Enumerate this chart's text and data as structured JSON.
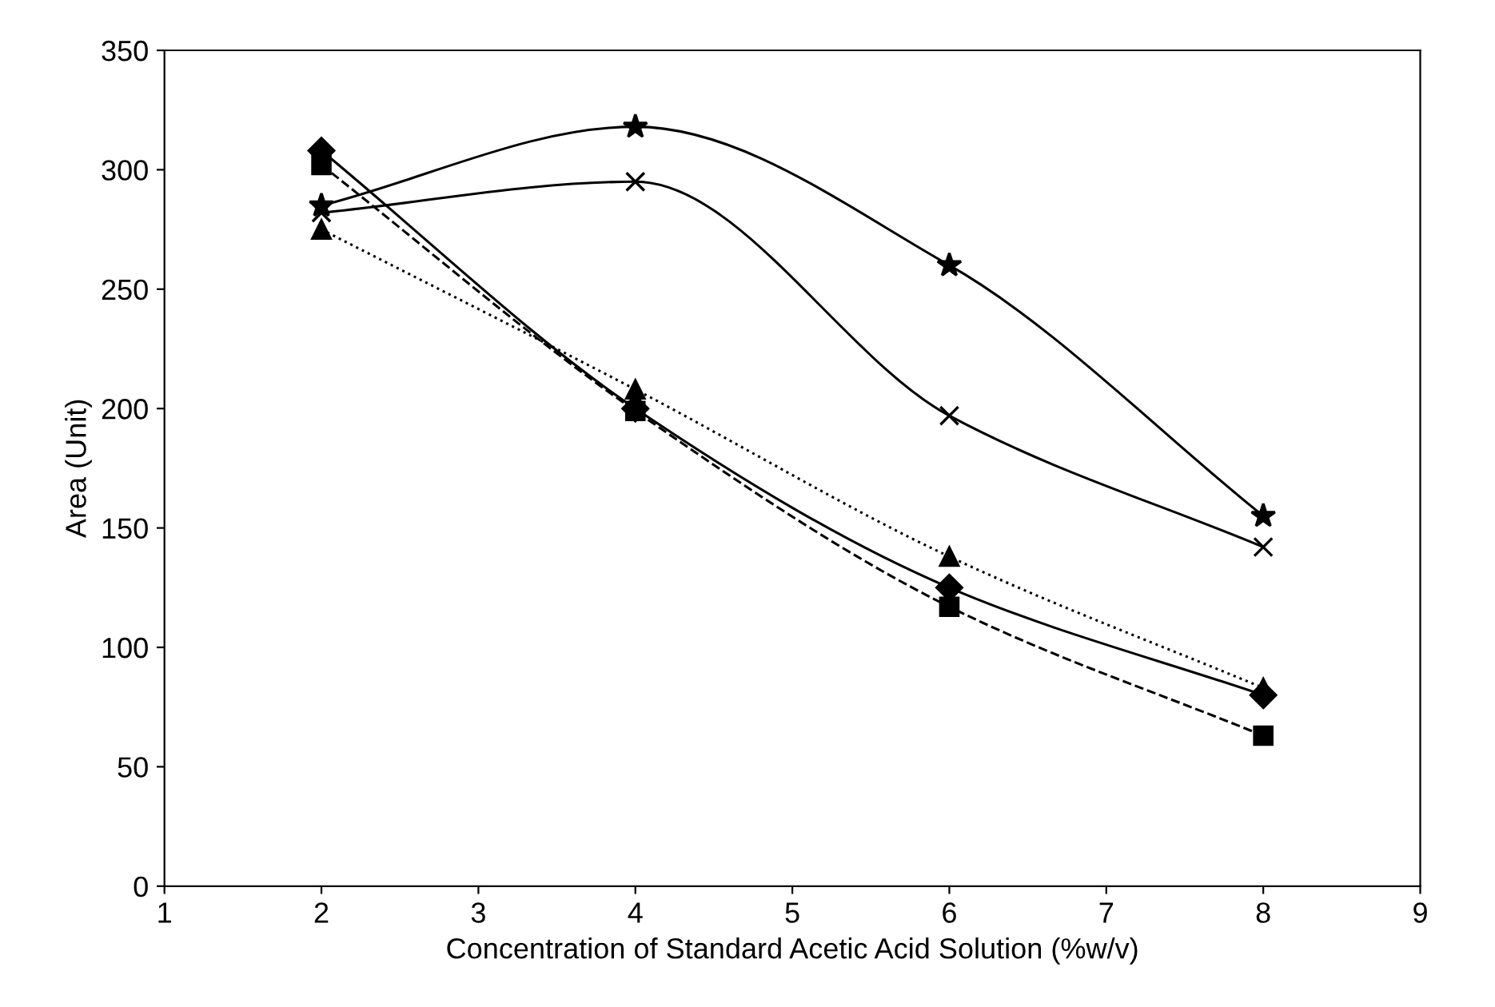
{
  "chart_data": {
    "type": "line",
    "xlabel": "Concentration of Standard Acetic Acid Solution (%w/v)",
    "ylabel": "Area (Unit)",
    "xlim": [
      1,
      9
    ],
    "xticks": [
      1,
      2,
      3,
      4,
      5,
      6,
      7,
      8,
      9
    ],
    "ylim": [
      0,
      350
    ],
    "yticks": [
      0,
      50,
      100,
      150,
      200,
      250,
      300,
      350
    ],
    "grid": false,
    "legend": false,
    "x": [
      2,
      4,
      6,
      8
    ],
    "series": [
      {
        "color": "#000000",
        "marker": "diamond",
        "line_style": "solid",
        "values": [
          308,
          200,
          125,
          80
        ]
      },
      {
        "color": "#000000",
        "marker": "square",
        "line_style": "dashed",
        "values": [
          302,
          199,
          117,
          63
        ]
      },
      {
        "color": "#000000",
        "marker": "triangle",
        "line_style": "dotted",
        "values": [
          275,
          208,
          138,
          83
        ]
      },
      {
        "color": "#000000",
        "marker": "star",
        "line_style": "solid",
        "values": [
          285,
          318,
          260,
          155
        ]
      },
      {
        "color": "#000000",
        "marker": "cross",
        "line_style": "solid",
        "values": [
          282,
          295,
          197,
          142
        ]
      }
    ]
  }
}
